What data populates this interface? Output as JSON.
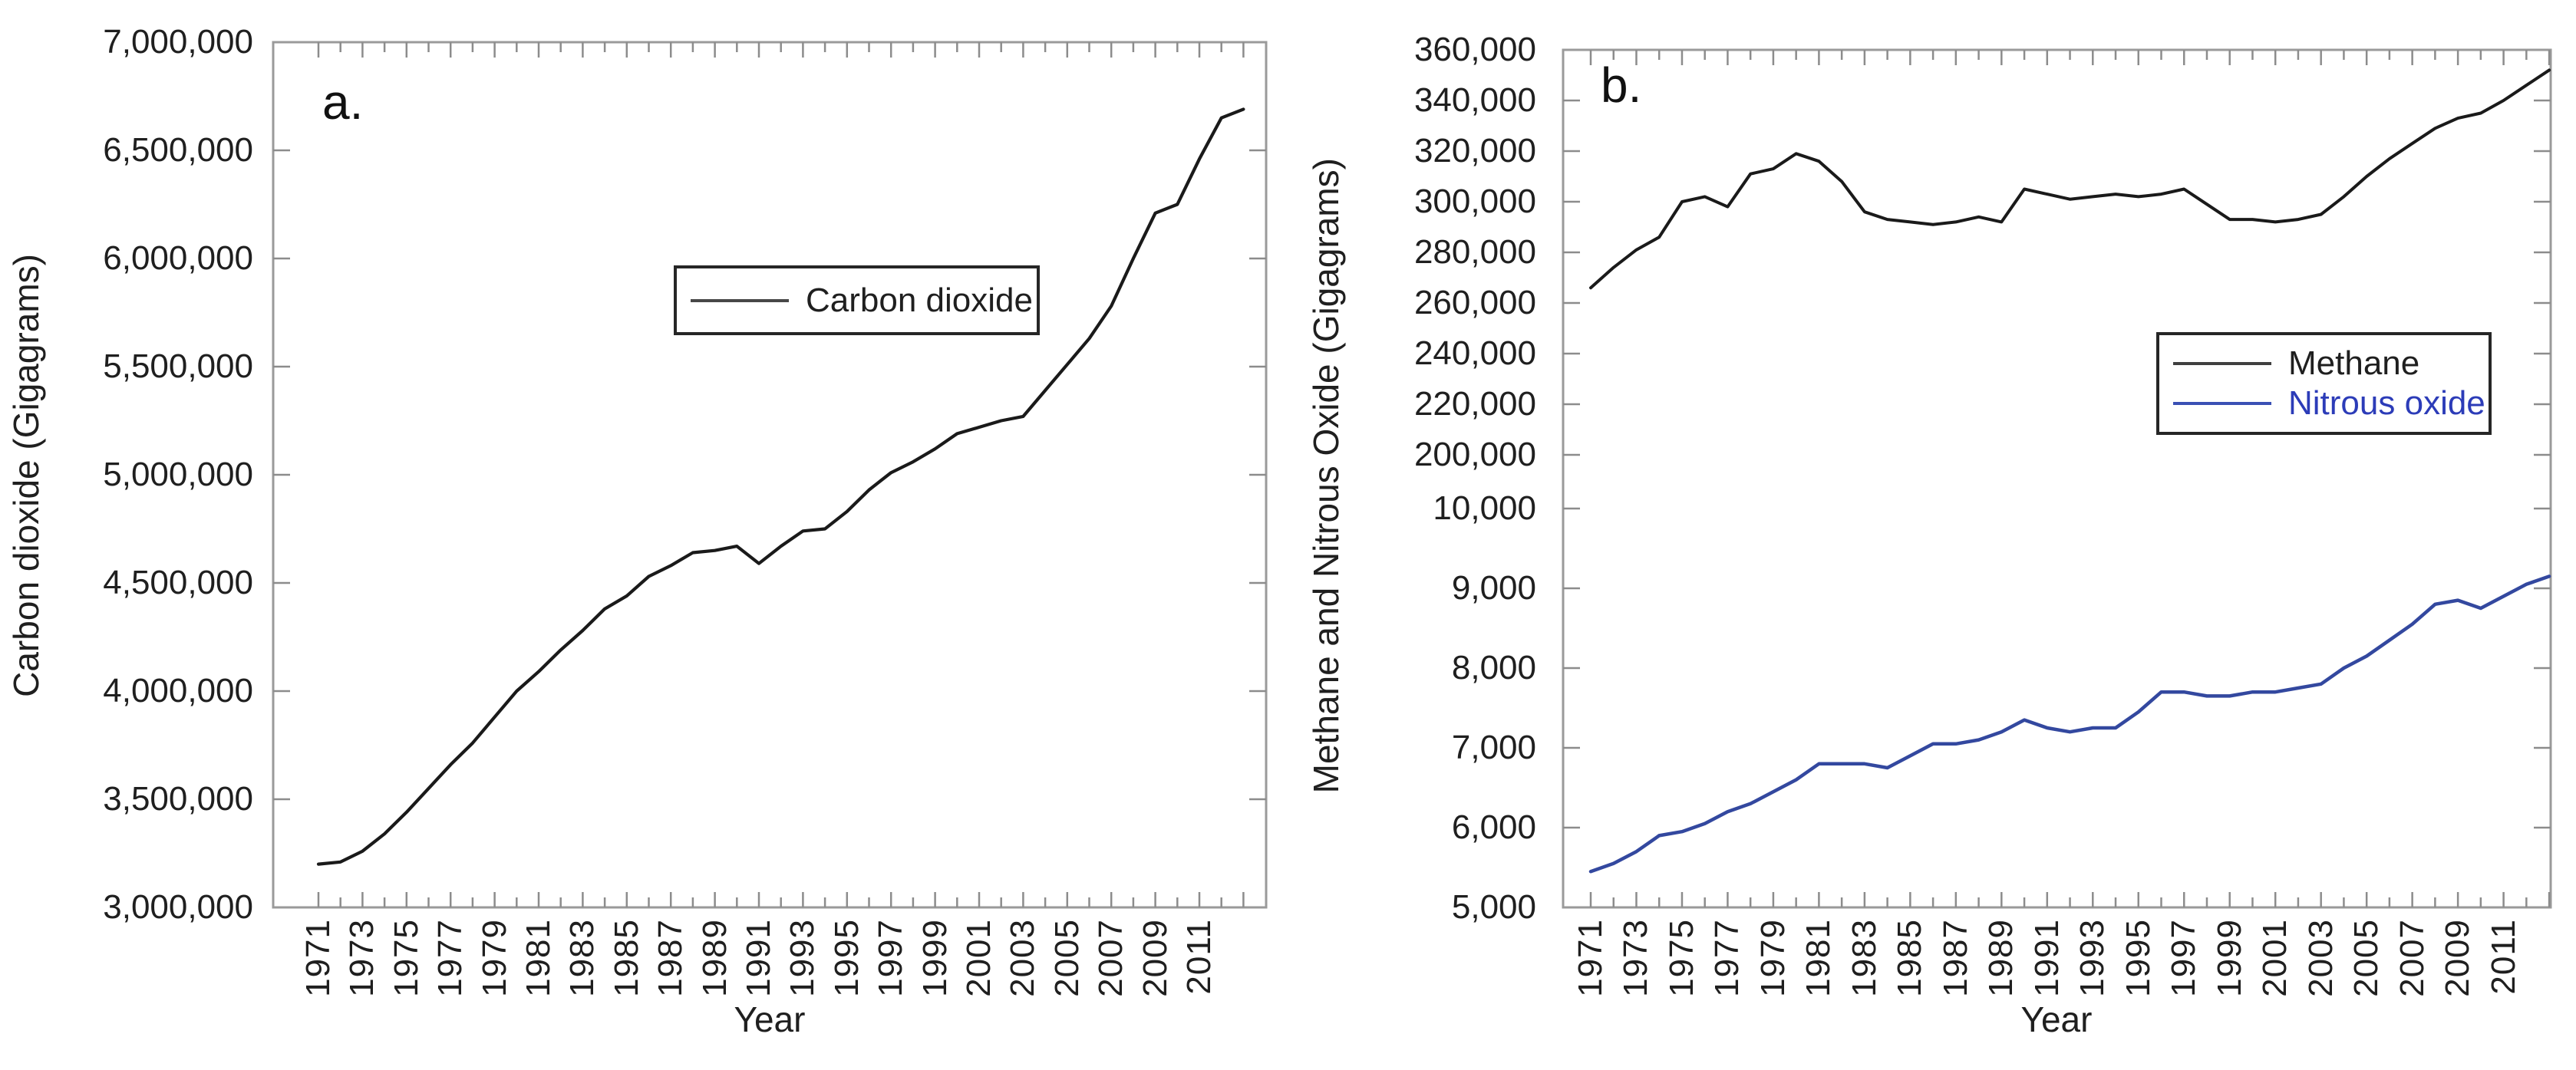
{
  "figure": {
    "background_color": "#ffffff",
    "frame_color": "#9a9a9a",
    "tick_color": "#8c8c8c",
    "text_color": "#1f1f1f",
    "panels": [
      {
        "panel_label": "a.",
        "y_axis_title": "Carbon dioxide (Gigagrams)",
        "x_axis_title": "Year",
        "y_tick_labels": [
          "7,000,000",
          "6,500,000",
          "6,000,000",
          "5,500,000",
          "5,000,000",
          "4,500,000",
          "4,000,000",
          "3,500,000",
          "3,000,000"
        ],
        "x_tick_labels": [
          "1971",
          "1973",
          "1975",
          "1977",
          "1979",
          "1981",
          "1983",
          "1985",
          "1987",
          "1989",
          "1991",
          "1993",
          "1995",
          "1997",
          "1999",
          "2001",
          "2003",
          "2005",
          "2007",
          "2009",
          "2011"
        ],
        "legend": [
          {
            "label": "Carbon dioxide",
            "sample_color": "#474747",
            "text_color": "#1f1f1f"
          }
        ]
      },
      {
        "panel_label": "b.",
        "y_axis_title": "Methane and Nitrous Oxide (Gigagrams)",
        "x_axis_title": "Year",
        "y_tick_labels_upper": [
          "360,000",
          "340,000",
          "320,000",
          "300,000",
          "280,000",
          "260,000",
          "240,000",
          "220,000",
          "200,000"
        ],
        "y_tick_labels_lower": [
          "10,000",
          "9,000",
          "8,000",
          "7,000",
          "6,000",
          "5,000"
        ],
        "x_tick_labels": [
          "1971",
          "1973",
          "1975",
          "1977",
          "1979",
          "1981",
          "1983",
          "1985",
          "1987",
          "1989",
          "1991",
          "1993",
          "1995",
          "1997",
          "1999",
          "2001",
          "2003",
          "2005",
          "2007",
          "2009",
          "2011"
        ],
        "legend": [
          {
            "label": "Methane",
            "sample_color": "#3f3f3f",
            "text_color": "#1f1f1f"
          },
          {
            "label": "Nitrous oxide",
            "sample_color": "#3a50b4",
            "text_color": "#2c3cb8"
          }
        ]
      }
    ]
  },
  "chart_data": [
    {
      "type": "line",
      "title": "",
      "xlabel": "Year",
      "ylabel": "Carbon dioxide (Gigagrams)",
      "x": [
        1971,
        1972,
        1973,
        1974,
        1975,
        1976,
        1977,
        1978,
        1979,
        1980,
        1981,
        1982,
        1983,
        1984,
        1985,
        1986,
        1987,
        1988,
        1989,
        1990,
        1991,
        1992,
        1993,
        1994,
        1995,
        1996,
        1997,
        1998,
        1999,
        2000,
        2001,
        2002,
        2003,
        2004,
        2005,
        2006,
        2007,
        2008,
        2009,
        2010,
        2011,
        2012,
        2013
      ],
      "xlim": [
        1971,
        2013
      ],
      "ylim": [
        3000000,
        7000000
      ],
      "y_tick_step": 500000,
      "grid": false,
      "legend_position": "upper-center-inside",
      "series": [
        {
          "name": "Carbon dioxide",
          "color": "#1a1a1a",
          "values": [
            3200000,
            3210000,
            3260000,
            3340000,
            3440000,
            3550000,
            3660000,
            3760000,
            3880000,
            4000000,
            4090000,
            4190000,
            4280000,
            4380000,
            4440000,
            4530000,
            4580000,
            4640000,
            4650000,
            4670000,
            4590000,
            4670000,
            4740000,
            4750000,
            4830000,
            4930000,
            5010000,
            5060000,
            5120000,
            5190000,
            5220000,
            5250000,
            5270000,
            5390000,
            5510000,
            5630000,
            5780000,
            6000000,
            6210000,
            6250000,
            6460000,
            6650000,
            6690000
          ]
        }
      ]
    },
    {
      "type": "line",
      "title": "",
      "xlabel": "Year",
      "ylabel": "Methane and Nitrous Oxide (Gigagrams)",
      "x": [
        1971,
        1972,
        1973,
        1974,
        1975,
        1976,
        1977,
        1978,
        1979,
        1980,
        1981,
        1982,
        1983,
        1984,
        1985,
        1986,
        1987,
        1988,
        1989,
        1990,
        1991,
        1992,
        1993,
        1994,
        1995,
        1996,
        1997,
        1998,
        1999,
        2000,
        2001,
        2002,
        2003,
        2004,
        2005,
        2006,
        2007,
        2008,
        2009,
        2010,
        2011,
        2012,
        2013
      ],
      "xlim": [
        1971,
        2013
      ],
      "broken_y_axis": true,
      "upper_axis": {
        "ylim": [
          200000,
          360000
        ],
        "tick_step": 20000
      },
      "lower_axis": {
        "ylim": [
          5000,
          10000
        ],
        "tick_step": 1000
      },
      "grid": false,
      "legend_position": "lower-right-inside",
      "series": [
        {
          "name": "Methane",
          "axis": "upper",
          "color": "#1a1a1a",
          "values": [
            266000,
            274000,
            281000,
            286000,
            300000,
            302000,
            298000,
            311000,
            313000,
            319000,
            316000,
            308000,
            296000,
            293000,
            292000,
            291000,
            292000,
            294000,
            292000,
            305000,
            303000,
            301000,
            302000,
            303000,
            302000,
            303000,
            305000,
            299000,
            293000,
            293000,
            292000,
            293000,
            295000,
            302000,
            310000,
            317000,
            323000,
            329000,
            333000,
            335000,
            340000,
            346000,
            352000
          ]
        },
        {
          "name": "Nitrous oxide",
          "axis": "lower",
          "color": "#33489f",
          "values": [
            5450,
            5550,
            5700,
            5900,
            5950,
            6050,
            6200,
            6300,
            6450,
            6600,
            6800,
            6800,
            6800,
            6750,
            6900,
            7050,
            7050,
            7100,
            7200,
            7350,
            7250,
            7200,
            7250,
            7250,
            7450,
            7700,
            7700,
            7650,
            7650,
            7700,
            7700,
            7750,
            7800,
            8000,
            8150,
            8350,
            8550,
            8800,
            8850,
            8750,
            8900,
            9050,
            9150
          ]
        }
      ]
    }
  ]
}
